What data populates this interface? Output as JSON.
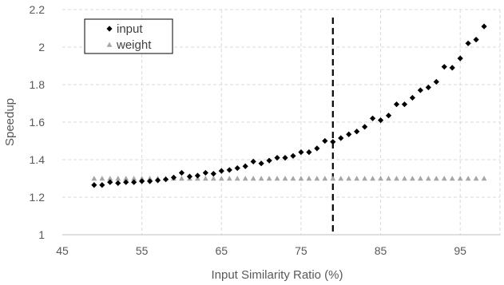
{
  "chart_data": {
    "type": "scatter",
    "title": "",
    "xlabel": "Input Similarity Ratio (%)",
    "ylabel": "Speedup",
    "xlim": [
      45,
      100
    ],
    "ylim": [
      1,
      2.2
    ],
    "xticks": [
      45,
      55,
      65,
      75,
      85,
      95
    ],
    "yticks": [
      1,
      1.2,
      1.4,
      1.6,
      1.8,
      2,
      2.2
    ],
    "grid": true,
    "legend_position": "top-left",
    "reference_line": {
      "x": 79,
      "style": "dashed",
      "color": "#000000"
    },
    "series": [
      {
        "name": "input",
        "marker": "diamond",
        "color": "#000000",
        "points": [
          [
            49,
            1.265
          ],
          [
            50,
            1.265
          ],
          [
            51,
            1.28
          ],
          [
            52,
            1.275
          ],
          [
            53,
            1.28
          ],
          [
            54,
            1.28
          ],
          [
            55,
            1.285
          ],
          [
            56,
            1.285
          ],
          [
            57,
            1.29
          ],
          [
            58,
            1.295
          ],
          [
            59,
            1.305
          ],
          [
            60,
            1.33
          ],
          [
            61,
            1.31
          ],
          [
            62,
            1.315
          ],
          [
            63,
            1.33
          ],
          [
            64,
            1.325
          ],
          [
            65,
            1.34
          ],
          [
            66,
            1.345
          ],
          [
            67,
            1.355
          ],
          [
            68,
            1.365
          ],
          [
            69,
            1.39
          ],
          [
            70,
            1.38
          ],
          [
            71,
            1.395
          ],
          [
            72,
            1.41
          ],
          [
            73,
            1.41
          ],
          [
            74,
            1.42
          ],
          [
            75,
            1.44
          ],
          [
            76,
            1.44
          ],
          [
            77,
            1.46
          ],
          [
            78,
            1.5
          ],
          [
            79,
            1.495
          ],
          [
            80,
            1.515
          ],
          [
            81,
            1.535
          ],
          [
            82,
            1.55
          ],
          [
            83,
            1.575
          ],
          [
            84,
            1.62
          ],
          [
            85,
            1.61
          ],
          [
            86,
            1.635
          ],
          [
            87,
            1.695
          ],
          [
            88,
            1.695
          ],
          [
            89,
            1.73
          ],
          [
            90,
            1.77
          ],
          [
            91,
            1.785
          ],
          [
            92,
            1.815
          ],
          [
            93,
            1.895
          ],
          [
            94,
            1.89
          ],
          [
            95,
            1.94
          ],
          [
            96,
            2.02
          ],
          [
            97,
            2.04
          ],
          [
            98,
            2.11
          ]
        ]
      },
      {
        "name": "weight",
        "marker": "triangle",
        "color": "#a6a6a6",
        "points": [
          [
            49,
            1.3
          ],
          [
            50,
            1.3
          ],
          [
            51,
            1.3
          ],
          [
            52,
            1.3
          ],
          [
            53,
            1.3
          ],
          [
            54,
            1.3
          ],
          [
            55,
            1.3
          ],
          [
            56,
            1.3
          ],
          [
            57,
            1.3
          ],
          [
            58,
            1.3
          ],
          [
            59,
            1.3
          ],
          [
            60,
            1.3
          ],
          [
            61,
            1.3
          ],
          [
            62,
            1.3
          ],
          [
            63,
            1.3
          ],
          [
            64,
            1.3
          ],
          [
            65,
            1.3
          ],
          [
            66,
            1.3
          ],
          [
            67,
            1.3
          ],
          [
            68,
            1.3
          ],
          [
            69,
            1.3
          ],
          [
            70,
            1.3
          ],
          [
            71,
            1.3
          ],
          [
            72,
            1.3
          ],
          [
            73,
            1.3
          ],
          [
            74,
            1.3
          ],
          [
            75,
            1.3
          ],
          [
            76,
            1.3
          ],
          [
            77,
            1.3
          ],
          [
            78,
            1.3
          ],
          [
            79,
            1.3
          ],
          [
            80,
            1.3
          ],
          [
            81,
            1.3
          ],
          [
            82,
            1.3
          ],
          [
            83,
            1.3
          ],
          [
            84,
            1.3
          ],
          [
            85,
            1.3
          ],
          [
            86,
            1.3
          ],
          [
            87,
            1.3
          ],
          [
            88,
            1.3
          ],
          [
            89,
            1.3
          ],
          [
            90,
            1.3
          ],
          [
            91,
            1.3
          ],
          [
            92,
            1.3
          ],
          [
            93,
            1.3
          ],
          [
            94,
            1.3
          ],
          [
            95,
            1.3
          ],
          [
            96,
            1.3
          ],
          [
            97,
            1.3
          ],
          [
            98,
            1.3
          ]
        ]
      }
    ]
  }
}
